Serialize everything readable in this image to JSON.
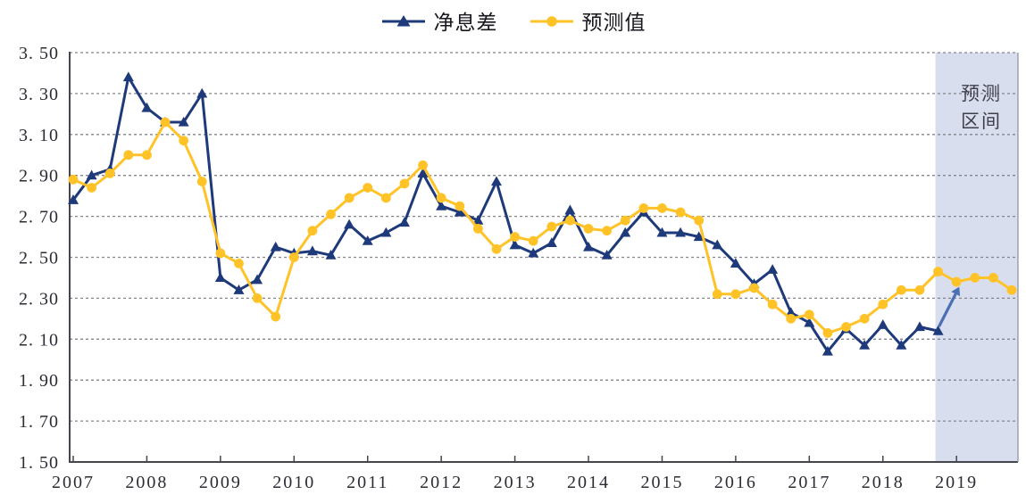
{
  "chart_data": {
    "type": "line",
    "title": "",
    "legend": {
      "position": "top-center"
    },
    "x_axis": {
      "year_labels": [
        "2007",
        "2008",
        "2009",
        "2010",
        "2011",
        "2012",
        "2013",
        "2014",
        "2015",
        "2016",
        "2017",
        "2018",
        "2019"
      ]
    },
    "y_axis": {
      "min": 1.5,
      "max": 3.5,
      "tick_labels": [
        "3. 50",
        "3. 30",
        "3. 10",
        "2. 90",
        "2. 70",
        "2. 50",
        "2. 30",
        "2. 10",
        "1. 90",
        "1. 70",
        "1. 50"
      ],
      "tick_values": [
        3.5,
        3.3,
        3.1,
        2.9,
        2.7,
        2.5,
        2.3,
        2.1,
        1.9,
        1.7,
        1.5
      ]
    },
    "x_quarters": [
      "2007Q1",
      "2007Q2",
      "2007Q3",
      "2007Q4",
      "2008Q1",
      "2008Q2",
      "2008Q3",
      "2008Q4",
      "2009Q1",
      "2009Q2",
      "2009Q3",
      "2009Q4",
      "2010Q1",
      "2010Q2",
      "2010Q3",
      "2010Q4",
      "2011Q1",
      "2011Q2",
      "2011Q3",
      "2011Q4",
      "2012Q1",
      "2012Q2",
      "2012Q3",
      "2012Q4",
      "2013Q1",
      "2013Q2",
      "2013Q3",
      "2013Q4",
      "2014Q1",
      "2014Q2",
      "2014Q3",
      "2014Q4",
      "2015Q1",
      "2015Q2",
      "2015Q3",
      "2015Q4",
      "2016Q1",
      "2016Q2",
      "2016Q3",
      "2016Q4",
      "2017Q1",
      "2017Q2",
      "2017Q3",
      "2017Q4",
      "2018Q1",
      "2018Q2",
      "2018Q3",
      "2018Q4",
      "2019Q1",
      "2019Q2",
      "2019Q3",
      "2019Q4"
    ],
    "series": [
      {
        "name": "净息差",
        "marker": "triangle",
        "color": "#1e3a7b",
        "values": [
          2.78,
          2.9,
          2.93,
          3.38,
          3.23,
          3.16,
          3.16,
          3.3,
          2.4,
          2.34,
          2.39,
          2.55,
          2.52,
          2.53,
          2.51,
          2.66,
          2.58,
          2.62,
          2.67,
          2.91,
          2.75,
          2.72,
          2.68,
          2.87,
          2.56,
          2.52,
          2.57,
          2.73,
          2.55,
          2.51,
          2.62,
          2.72,
          2.62,
          2.62,
          2.6,
          2.56,
          2.47,
          2.37,
          2.44,
          2.23,
          2.18,
          2.04,
          2.15,
          2.07,
          2.17,
          2.07,
          2.16,
          2.14,
          null,
          null,
          null,
          null
        ]
      },
      {
        "name": "预测值",
        "marker": "circle",
        "color": "#ffc328",
        "values": [
          2.88,
          2.84,
          2.91,
          3.0,
          3.0,
          3.16,
          3.07,
          2.87,
          2.52,
          2.47,
          2.3,
          2.21,
          2.5,
          2.63,
          2.71,
          2.79,
          2.84,
          2.79,
          2.86,
          2.95,
          2.79,
          2.75,
          2.64,
          2.54,
          2.6,
          2.58,
          2.65,
          2.68,
          2.64,
          2.63,
          2.68,
          2.74,
          2.74,
          2.72,
          2.68,
          2.32,
          2.32,
          2.35,
          2.27,
          2.2,
          2.22,
          2.13,
          2.16,
          2.2,
          2.27,
          2.34,
          2.34,
          2.43,
          2.38,
          2.4,
          2.4,
          2.34
        ]
      }
    ],
    "forecast_band": {
      "label": "预测区间",
      "label_lines": [
        "预测",
        "区间"
      ],
      "start_quarter": "2018Q4",
      "fill": "#d8deee"
    },
    "arrow": {
      "from_quarter": "2018Q4",
      "from_value": 2.14,
      "to_quarter": "2019Q1",
      "to_value": 2.36,
      "color": "#4a6fb4"
    },
    "grid": {
      "dashed": true,
      "color": "#85858d"
    },
    "axis_color": "#45454d",
    "label_color": "#2b2c34"
  }
}
